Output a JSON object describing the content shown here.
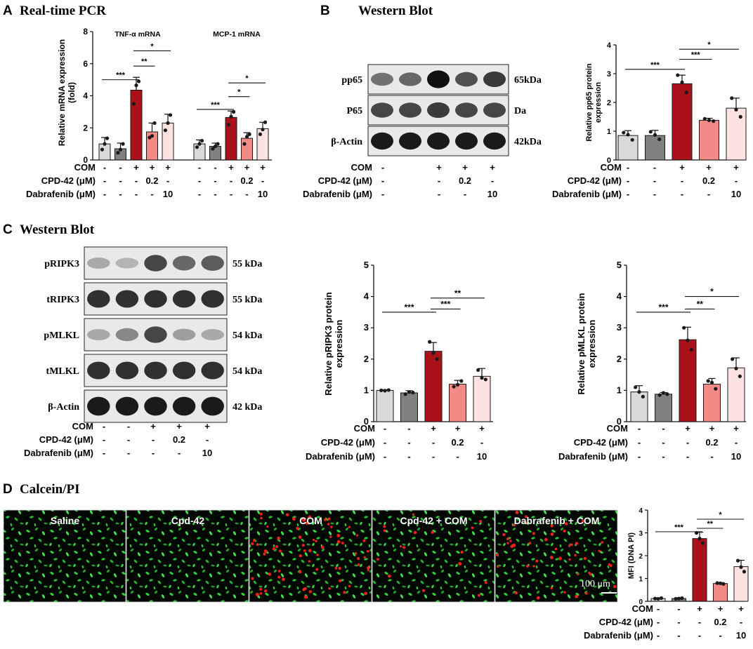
{
  "palette": {
    "group_fills": [
      "#d9d9d9",
      "#808080",
      "#a81218",
      "#f28b86",
      "#fde2e2"
    ],
    "dot": "#1a1a1a",
    "bar_stroke": "#1a1a1a",
    "green_cells": "#2fd03a",
    "red_cells": "#f0201a",
    "micro_background": "#040804"
  },
  "panelA": {
    "letter": "A",
    "title": "Real-time PCR",
    "ylabel": [
      "Relative mRNA expression",
      "(fold)"
    ],
    "chart_data": {
      "type": "bar",
      "ylim": [
        0,
        8
      ],
      "yticks": [
        0,
        2,
        4,
        6,
        8
      ],
      "series": [
        {
          "name": "TNF-α mRNA",
          "values": [
            1.0,
            0.7,
            4.35,
            1.75,
            2.3
          ],
          "errors": [
            0.4,
            0.35,
            0.8,
            0.55,
            0.55
          ],
          "points": [
            [
              0.65,
              1.35,
              1.0
            ],
            [
              0.45,
              1.0,
              0.65
            ],
            [
              3.5,
              4.9,
              4.65
            ],
            [
              1.4,
              2.3,
              1.5
            ],
            [
              1.85,
              2.8,
              2.3
            ]
          ],
          "comparisons": [
            {
              "label": "***",
              "from": 0,
              "to": 2,
              "y": 5.0
            },
            {
              "label": "**",
              "from": 2,
              "to": 3,
              "y": 5.85
            },
            {
              "label": "*",
              "from": 2,
              "to": 4,
              "y": 6.8
            }
          ]
        },
        {
          "name": "MCP-1 mRNA",
          "values": [
            1.0,
            0.85,
            2.65,
            1.35,
            1.95
          ],
          "errors": [
            0.25,
            0.2,
            0.4,
            0.35,
            0.4
          ],
          "points": [
            [
              0.8,
              1.2,
              1.0
            ],
            [
              0.7,
              1.0,
              0.85
            ],
            [
              2.2,
              3.0,
              2.7
            ],
            [
              1.0,
              1.6,
              1.45
            ],
            [
              1.6,
              2.35,
              1.9
            ]
          ],
          "comparisons": [
            {
              "label": "***",
              "from": 0,
              "to": 2,
              "y": 3.15
            },
            {
              "label": "*",
              "from": 2,
              "to": 3,
              "y": 3.95
            },
            {
              "label": "*",
              "from": 2,
              "to": 4,
              "y": 4.8
            }
          ]
        }
      ]
    },
    "treatment": {
      "rows": [
        "COM",
        "CPD-42 (μM)",
        "Dabrafenib (μM)"
      ],
      "groups": [
        [
          "-",
          "-",
          "+",
          "+",
          "+"
        ],
        [
          "-",
          "-",
          "-",
          "0.2",
          "-"
        ],
        [
          "-",
          "-",
          "-",
          "-",
          "10"
        ]
      ]
    }
  },
  "panelB": {
    "letter": "B",
    "title": "Western Blot",
    "blot": {
      "left_labels": [
        "pp65",
        "P65",
        "β-Actin"
      ],
      "right_labels": [
        "65kDa",
        "Da",
        "42kDa"
      ],
      "band_intensity": [
        [
          0.55,
          0.6,
          1.0,
          0.7,
          0.8
        ],
        [
          0.75,
          0.75,
          0.8,
          0.75,
          0.75
        ],
        [
          0.95,
          0.95,
          0.95,
          0.95,
          0.95
        ]
      ]
    },
    "blot_treatment": {
      "rows": [
        "COM",
        "CPD-42 (μM)",
        "Dabrafenib (μM)"
      ],
      "groups": [
        [
          "-",
          "",
          "+",
          "+",
          "+"
        ],
        [
          "-",
          "",
          "-",
          "0.2",
          "-"
        ],
        [
          "-",
          "",
          "-",
          "-",
          "10"
        ]
      ]
    },
    "ylabel": [
      "Relative pp65 protein",
      "expression"
    ],
    "chart_data": {
      "type": "bar",
      "ylim": [
        0,
        4
      ],
      "yticks": [
        0,
        1,
        2,
        3,
        4
      ],
      "values": [
        0.85,
        0.85,
        2.65,
        1.38,
        1.8
      ],
      "errors": [
        0.17,
        0.18,
        0.3,
        0.07,
        0.35
      ],
      "points": [
        [
          0.95,
          0.7,
          0.88
        ],
        [
          0.98,
          0.72,
          0.87
        ],
        [
          2.95,
          2.35,
          2.7
        ],
        [
          1.43,
          1.35,
          1.38
        ],
        [
          2.15,
          1.5,
          1.75
        ]
      ],
      "comparisons": [
        {
          "label": "***",
          "from": 0,
          "to": 2,
          "y": 3.15
        },
        {
          "label": "***",
          "from": 2,
          "to": 3,
          "y": 3.5
        },
        {
          "label": "*",
          "from": 2,
          "to": 4,
          "y": 3.85
        }
      ]
    },
    "treatment": {
      "rows": [
        "COM",
        "CPD-42 (μM)",
        "Dabrafenib (μM)"
      ],
      "groups": [
        [
          "-",
          "-",
          "+",
          "+",
          "+"
        ],
        [
          "-",
          "-",
          "-",
          "0.2",
          "-"
        ],
        [
          "-",
          "-",
          "-",
          "-",
          "10"
        ]
      ]
    }
  },
  "panelC": {
    "letter": "C",
    "title": "Western Blot",
    "blot": {
      "left_labels": [
        "pRIPK3",
        "tRIPK3",
        "pMLKL",
        "tMLKL",
        "β-Actin"
      ],
      "right_labels": [
        "55 kDa",
        "55 kDa",
        "54 kDa",
        "54 kDa",
        "42 kDa"
      ],
      "band_intensity": [
        [
          0.3,
          0.25,
          0.75,
          0.6,
          0.65
        ],
        [
          0.85,
          0.85,
          0.85,
          0.85,
          0.85
        ],
        [
          0.3,
          0.45,
          0.75,
          0.35,
          0.3
        ],
        [
          0.85,
          0.85,
          0.85,
          0.85,
          0.85
        ],
        [
          0.95,
          0.95,
          0.95,
          0.95,
          0.95
        ]
      ]
    },
    "blot_treatment": {
      "rows": [
        "COM",
        "CPD-42 (μM)",
        "Dabrafenib (μM)"
      ],
      "groups": [
        [
          "-",
          "-",
          "+",
          "+",
          "+"
        ],
        [
          "-",
          "-",
          "-",
          "0.2",
          "-"
        ],
        [
          "-",
          "-",
          "-",
          "-",
          "10"
        ]
      ]
    },
    "charts": [
      {
        "ylabel": [
          "Relative pRIPK3 protein",
          "expression"
        ],
        "chart_data": {
          "type": "bar",
          "ylim": [
            0,
            5
          ],
          "yticks": [
            0,
            1,
            2,
            3,
            4,
            5
          ],
          "values": [
            1.0,
            0.92,
            2.25,
            1.2,
            1.45
          ],
          "errors": [
            0.02,
            0.07,
            0.28,
            0.12,
            0.25
          ],
          "points": [
            [
              1.0,
              1.01,
              0.99
            ],
            [
              0.88,
              0.93,
              0.95
            ],
            [
              2.55,
              2.0,
              2.2
            ],
            [
              1.12,
              1.3,
              1.18
            ],
            [
              1.65,
              1.35,
              1.4
            ]
          ],
          "comparisons": [
            {
              "label": "***",
              "from": 0,
              "to": 2,
              "y": 3.5
            },
            {
              "label": "***",
              "from": 2,
              "to": 3,
              "y": 3.6
            },
            {
              "label": "**",
              "from": 2,
              "to": 4,
              "y": 3.95
            }
          ]
        },
        "treatment": {
          "rows": [
            "COM",
            "CPD-42 (μM)",
            "Dabrafenib (μM)"
          ],
          "groups": [
            [
              "-",
              "-",
              "+",
              "+",
              "+"
            ],
            [
              "-",
              "-",
              "-",
              "0.2",
              "-"
            ],
            [
              "-",
              "-",
              "-",
              "-",
              "10"
            ]
          ]
        }
      },
      {
        "ylabel": [
          "Relative pMLKL protein",
          "expression"
        ],
        "chart_data": {
          "type": "bar",
          "ylim": [
            0,
            5
          ],
          "yticks": [
            0,
            1,
            2,
            3,
            4,
            5
          ],
          "values": [
            0.95,
            0.88,
            2.62,
            1.2,
            1.72
          ],
          "errors": [
            0.2,
            0.05,
            0.4,
            0.18,
            0.32
          ],
          "points": [
            [
              1.1,
              0.8,
              0.95
            ],
            [
              0.85,
              0.88,
              0.92
            ],
            [
              3.0,
              2.3,
              2.6
            ],
            [
              1.3,
              1.05,
              1.25
            ],
            [
              2.0,
              1.45,
              1.7
            ]
          ],
          "comparisons": [
            {
              "label": "***",
              "from": 0,
              "to": 2,
              "y": 3.5
            },
            {
              "label": "**",
              "from": 2,
              "to": 3,
              "y": 3.6
            },
            {
              "label": "*",
              "from": 2,
              "to": 4,
              "y": 4.0
            }
          ]
        },
        "treatment": {
          "rows": [
            "COM",
            "CPD-42 (μM)",
            "Dabrafenib (μM)"
          ],
          "groups": [
            [
              "-",
              "-",
              "+",
              "+",
              "+"
            ],
            [
              "-",
              "-",
              "-",
              "0.2",
              "-"
            ],
            [
              "-",
              "-",
              "-",
              "-",
              "10"
            ]
          ]
        }
      }
    ]
  },
  "panelD": {
    "letter": "D",
    "title": "Calcein/PI",
    "images": [
      {
        "label": "Saline",
        "red_density": 0.0
      },
      {
        "label": "Cpd-42",
        "red_density": 0.0
      },
      {
        "label": "COM",
        "red_density": 0.55
      },
      {
        "label": "Cpd-42 + COM",
        "red_density": 0.12
      },
      {
        "label": "Dabrafenib + COM",
        "red_density": 0.35
      }
    ],
    "scale_bar": "100 μm",
    "ylabel": [
      "MFI (DNA PI)"
    ],
    "chart_data": {
      "type": "bar",
      "ylim": [
        0,
        4
      ],
      "yticks": [
        0,
        1,
        2,
        3,
        4
      ],
      "values": [
        0.12,
        0.12,
        2.75,
        0.78,
        1.52
      ],
      "errors": [
        0.03,
        0.03,
        0.28,
        0.04,
        0.28
      ],
      "points": [
        [
          0.12,
          0.14,
          0.11
        ],
        [
          0.11,
          0.14,
          0.12
        ],
        [
          3.0,
          2.55,
          2.75
        ],
        [
          0.8,
          0.76,
          0.79
        ],
        [
          1.78,
          1.3,
          1.5
        ]
      ],
      "comparisons": [
        {
          "label": "***",
          "from": 0,
          "to": 2,
          "y": 3.05
        },
        {
          "label": "**",
          "from": 2,
          "to": 3,
          "y": 3.2
        },
        {
          "label": "*",
          "from": 2,
          "to": 4,
          "y": 3.6
        }
      ]
    },
    "treatment": {
      "rows": [
        "COM",
        "CPD-42 (μM)",
        "Dabrafenib (μM)"
      ],
      "groups": [
        [
          "-",
          "-",
          "+",
          "+",
          "+"
        ],
        [
          "-",
          "-",
          "-",
          "0.2",
          "-"
        ],
        [
          "-",
          "-",
          "-",
          "-",
          "10"
        ]
      ]
    }
  }
}
